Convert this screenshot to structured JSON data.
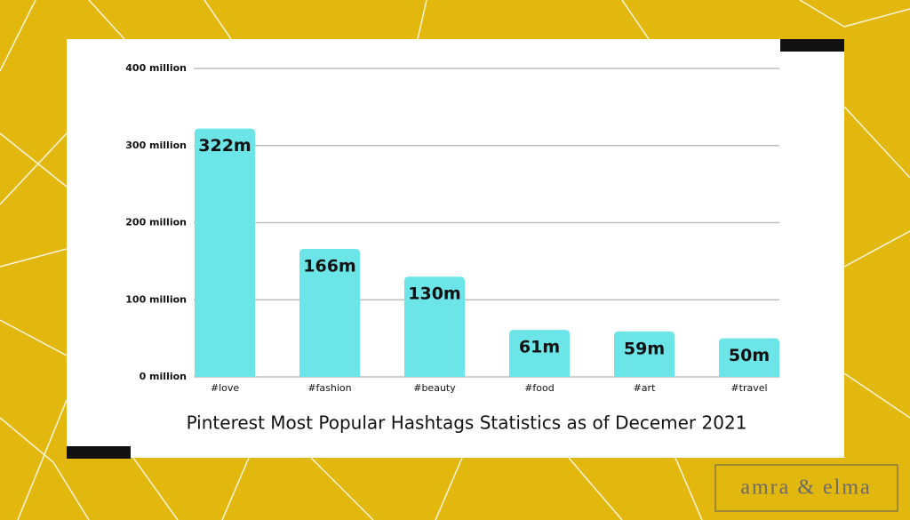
{
  "chart_data": {
    "type": "bar",
    "title": "Pinterest Most Popular Hashtags Statistics as of Decemer 2021",
    "categories": [
      "#love",
      "#fashion",
      "#beauty",
      "#food",
      "#art",
      "#travel"
    ],
    "values": [
      322,
      166,
      130,
      61,
      59,
      50
    ],
    "value_labels": [
      "322m",
      "166m",
      "130m",
      "61m",
      "59m",
      "50m"
    ],
    "color": "#6ce5e8",
    "ylim": [
      0,
      400
    ],
    "yticks": [
      {
        "value": 0,
        "label": "0 million"
      },
      {
        "value": 100,
        "label": "100 million"
      },
      {
        "value": 200,
        "label": "200 million"
      },
      {
        "value": 300,
        "label": "300 million"
      },
      {
        "value": 400,
        "label": "400 million"
      }
    ],
    "grid": true
  },
  "brand": "amra & elma"
}
